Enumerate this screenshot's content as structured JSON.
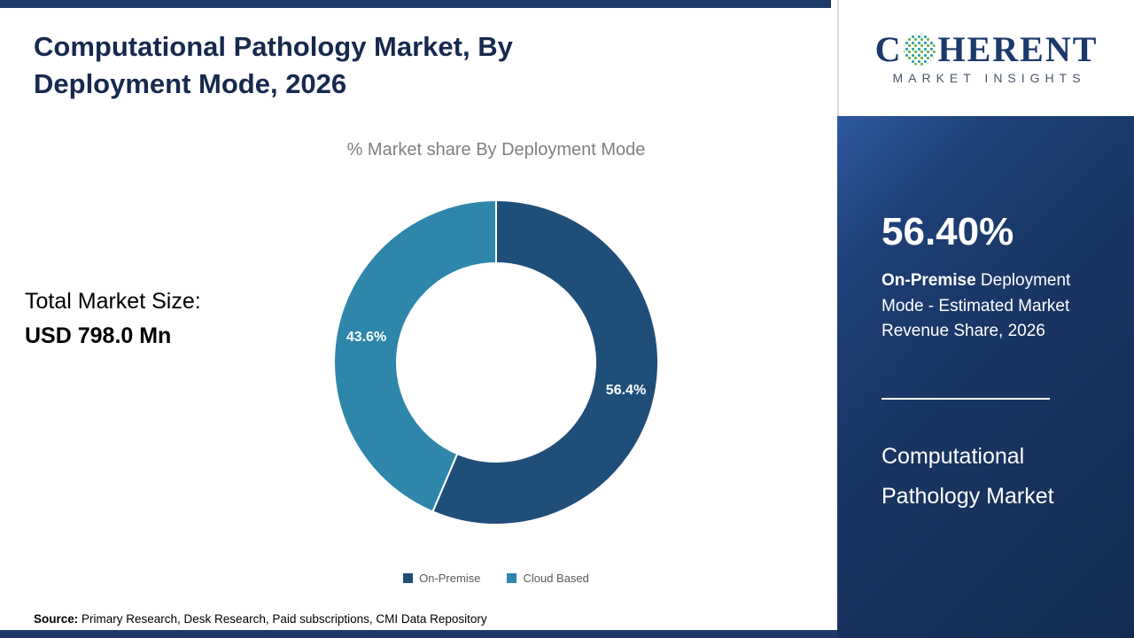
{
  "header": {
    "title": "Computational Pathology Market, By Deployment Mode, 2026"
  },
  "market_size": {
    "label": "Total Market Size:",
    "value": "USD 798.0 Mn"
  },
  "chart_data": {
    "type": "pie",
    "subtype": "donut",
    "title": "% Market share By Deployment Mode",
    "categories": [
      "On-Premise",
      "Cloud Based"
    ],
    "values": [
      56.4,
      43.6
    ],
    "labels": [
      "56.4%",
      "43.6%"
    ],
    "colors": [
      "#1f4e79",
      "#2e86ab"
    ],
    "legend_position": "bottom",
    "start_angle_deg": 0,
    "inner_radius_ratio": 0.61
  },
  "sidebar": {
    "logo": {
      "prefix": "C",
      "suffix": "HERENT",
      "tagline": "MARKET INSIGHTS"
    },
    "stat_value": "56.40%",
    "stat_desc_bold": "On-Premise",
    "stat_desc_rest": " Deployment Mode - Estimated Market Revenue Share, 2026",
    "market_name": "Computational Pathology Market"
  },
  "footer": {
    "source_label": "Source:",
    "source_text": " Primary Research, Desk Research, Paid subscriptions, CMI Data Repository"
  }
}
